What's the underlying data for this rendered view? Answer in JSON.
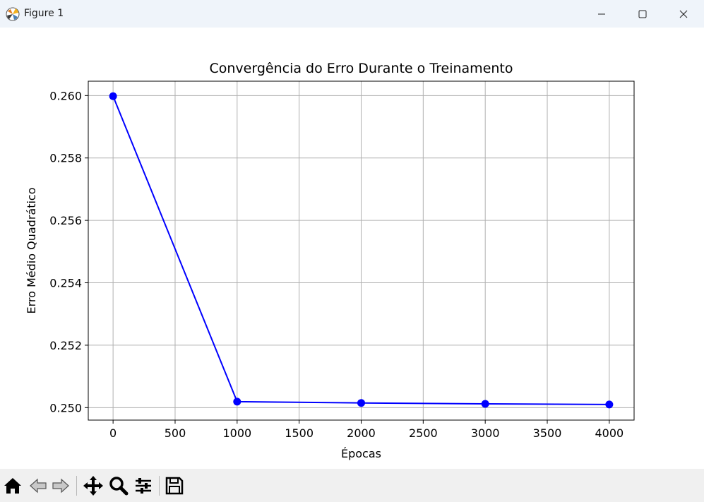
{
  "window": {
    "title": "Figure 1",
    "app_icon": "matplotlib-icon",
    "controls": [
      "minimize-icon",
      "maximize-icon",
      "close-icon"
    ]
  },
  "toolbar": {
    "buttons": [
      {
        "name": "home-button",
        "icon": "home-icon"
      },
      {
        "name": "back-button",
        "icon": "back-arrow-icon"
      },
      {
        "name": "forward-button",
        "icon": "forward-arrow-icon"
      },
      {
        "name": "pan-button",
        "icon": "move-icon"
      },
      {
        "name": "zoom-button",
        "icon": "zoom-icon"
      },
      {
        "name": "configure-subplots-button",
        "icon": "sliders-icon"
      },
      {
        "name": "save-button",
        "icon": "save-icon"
      }
    ]
  },
  "chart_data": {
    "type": "line",
    "title": "Convergência do Erro Durante o Treinamento",
    "xlabel": "Épocas",
    "ylabel": "Erro Médio Quadrático",
    "x": [
      0,
      1000,
      2000,
      3000,
      4000
    ],
    "series": [
      {
        "values": [
          0.25998,
          0.25019,
          0.25015,
          0.25012,
          0.2501
        ],
        "color": "#0000ff",
        "marker": "circle"
      }
    ],
    "xlim": [
      -200,
      4200
    ],
    "ylim": [
      0.2496,
      0.26046
    ],
    "xticks": [
      0,
      500,
      1000,
      1500,
      2000,
      2500,
      3000,
      3500,
      4000
    ],
    "xtick_labels": [
      "0",
      "500",
      "1000",
      "1500",
      "2000",
      "2500",
      "3000",
      "3500",
      "4000"
    ],
    "yticks": [
      0.25,
      0.252,
      0.254,
      0.256,
      0.258,
      0.26
    ],
    "ytick_labels": [
      "0.250",
      "0.252",
      "0.254",
      "0.256",
      "0.258",
      "0.260"
    ],
    "grid": true,
    "grid_color": "#b0b0b0"
  }
}
